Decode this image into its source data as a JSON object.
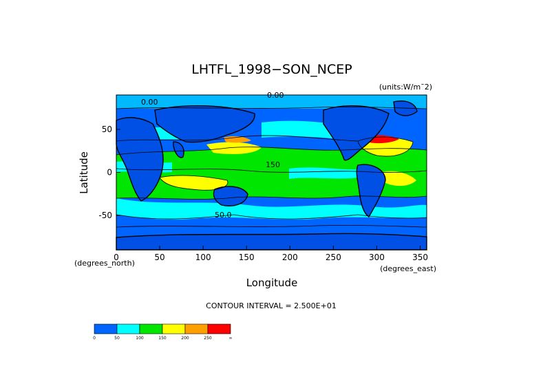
{
  "chart_data": {
    "type": "heatmap",
    "title": "LHTFL_1998−SON_NCEP",
    "units_note": "(units:W/m¯2)",
    "xlabel": "Longitude",
    "ylabel": "Latitude",
    "x_unit_label": "(degrees_east)",
    "y_unit_label": "(degrees_north)",
    "xlim": [
      0,
      357.5
    ],
    "ylim": [
      -90,
      90
    ],
    "x_ticks": [
      0,
      50,
      100,
      150,
      200,
      250,
      300,
      350
    ],
    "y_ticks": [
      50,
      0,
      -50
    ],
    "contour_interval_text": "CONTOUR INTERVAL = 2.500E+01",
    "contour_labels": [
      "0.00",
      "0.00",
      "150",
      "50.0"
    ],
    "colorbar": {
      "levels": [
        0,
        50,
        100,
        150,
        200,
        250
      ],
      "level_labels": [
        "0",
        "50",
        "100",
        "150",
        "200",
        "250",
        "∞"
      ],
      "colors": [
        "#0064ff",
        "#00ffff",
        "#00e600",
        "#ffff00",
        "#ffa000",
        "#ff0000"
      ]
    },
    "grid": false,
    "legend": "colorbar bottom-left"
  }
}
